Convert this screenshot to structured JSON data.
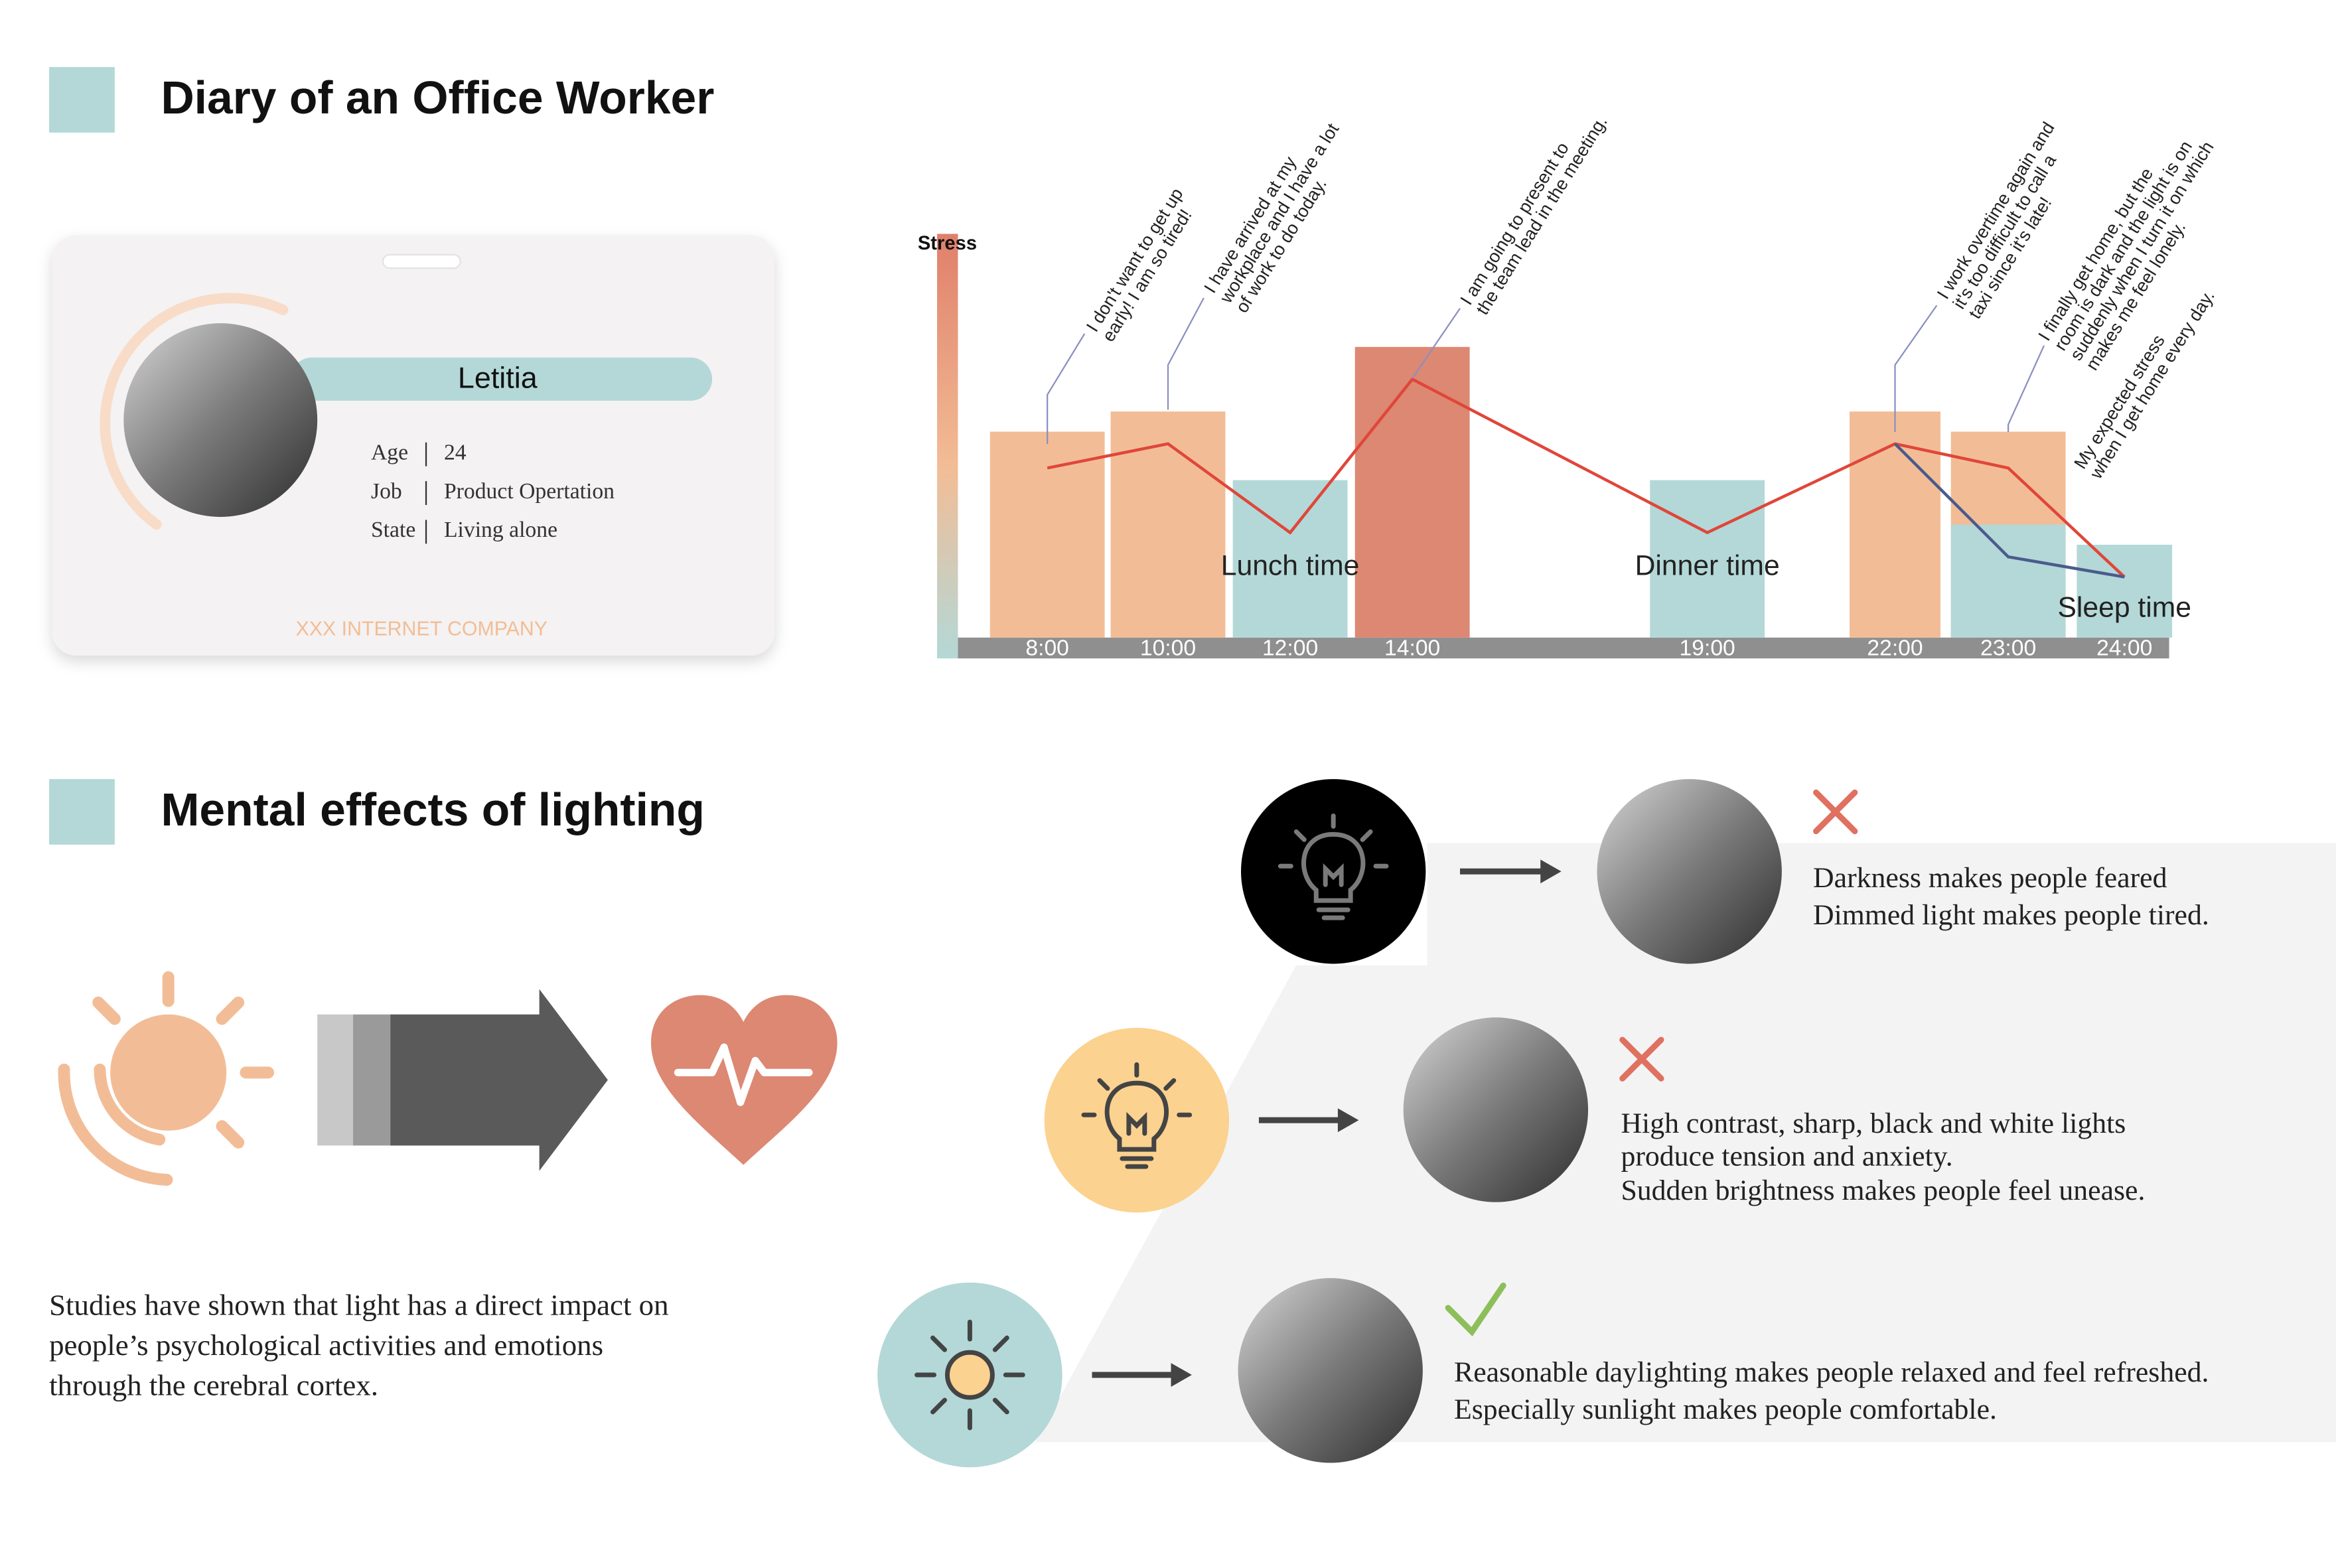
{
  "sections": [
    {
      "title": "Diary of an Office Worker"
    },
    {
      "title": "Mental effects of lighting"
    }
  ],
  "card": {
    "name": "Letitia",
    "fields": [
      {
        "label": "Age",
        "value": "24"
      },
      {
        "label": "Job",
        "value": "Product Opertation"
      },
      {
        "label": "State",
        "value": "Living alone"
      }
    ],
    "company": "XXX INTERNET COMPANY"
  },
  "chart_data": {
    "type": "bar",
    "y_label": "Stress",
    "categories": [
      "8:00",
      "10:00",
      "12:00",
      "14:00",
      "19:00",
      "22:00",
      "23:00",
      "24:00"
    ],
    "series": [
      {
        "color": "#f2bd96",
        "values": [
          51,
          56,
          null,
          null,
          null,
          56,
          51,
          null
        ]
      },
      {
        "color": "#dc8872",
        "values": [
          null,
          null,
          null,
          72,
          null,
          null,
          null,
          null
        ]
      },
      {
        "color": "#b3d8d7",
        "values": [
          null,
          null,
          39,
          null,
          39,
          null,
          28,
          23
        ]
      }
    ],
    "lines": [
      {
        "color": "#e0463a",
        "values": [
          42,
          48,
          26,
          64,
          26,
          48,
          42,
          15
        ]
      },
      {
        "color": "#4a5b8c",
        "values": [
          null,
          null,
          null,
          null,
          null,
          48,
          20,
          15
        ]
      }
    ],
    "ylim": [
      0,
      100
    ],
    "annotations": [
      "Lunch time",
      "Dinner time",
      "Sleep time"
    ],
    "notes": [
      [
        "I don't want to get up",
        "early! I am so tired!"
      ],
      [
        "I have arrived at my",
        "workplace and I have a lot",
        "of work to do today."
      ],
      [
        "I am going to present to",
        "the team lead in the meeting."
      ],
      [
        "I work overtime again and",
        "it's too difficult to call a",
        "taxi since it's late!"
      ],
      [
        "I finally get home, but the",
        "room is dark and the light is on",
        "suddenly when I turn it on which",
        "makes me feel lonely."
      ],
      [
        "My expected stress",
        "when I get home every day."
      ]
    ]
  },
  "lighting": {
    "intro": [
      "Studies have shown that light has a direct impact on",
      "people’s psychological activities and emotions",
      "through the cerebral cortex."
    ],
    "rows": [
      {
        "text": [
          "Darkness makes people feared",
          "Dimmed light makes people tired."
        ]
      },
      {
        "text": [
          "High contrast, sharp, black and white lights",
          "produce tension and anxiety.",
          "Sudden brightness makes people feel unease."
        ]
      },
      {
        "text": [
          "Reasonable daylighting makes people relaxed and feel refreshed.",
          "Especially sunlight makes people comfortable."
        ]
      }
    ]
  }
}
